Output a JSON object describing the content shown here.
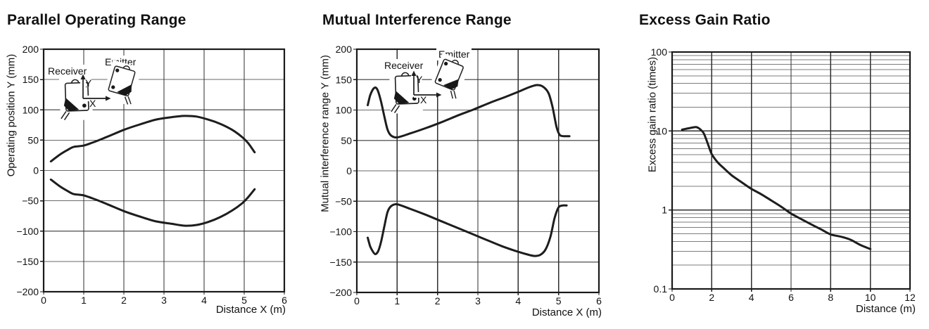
{
  "colors": {
    "background": "#ffffff",
    "text": "#111111",
    "curve": "#1d1d1d",
    "border": "#1a1a1a",
    "grid_horizontal": "#6a6a6a",
    "grid_vertical": "#2e2e2e",
    "grid_log_major": "#2e2e2e",
    "grid_log_minor": "#7d7d7d"
  },
  "chart_data": [
    {
      "id": "parallel",
      "type": "line",
      "title": "Parallel Operating Range",
      "xlabel": "Distance X (m)",
      "ylabel": "Operating position Y (mm)",
      "xscale": "linear",
      "yscale": "linear",
      "xlim": [
        0,
        6
      ],
      "ylim": [
        -200,
        200
      ],
      "xticks": [
        0,
        1,
        2,
        3,
        4,
        5,
        6
      ],
      "yticks": [
        200,
        150,
        100,
        50,
        0,
        -50,
        -100,
        -150,
        -200
      ],
      "grid": true,
      "inset": {
        "receiver": "Receiver",
        "emitter": "Emitter",
        "y_arrow": "Y",
        "x_arrow": "X"
      },
      "series": [
        {
          "name": "upper-boundary",
          "points": [
            [
              0.18,
              15
            ],
            [
              0.4,
              26
            ],
            [
              0.6,
              34
            ],
            [
              0.75,
              39
            ],
            [
              1.0,
              41
            ],
            [
              1.3,
              48
            ],
            [
              1.6,
              56
            ],
            [
              2.0,
              67
            ],
            [
              2.4,
              76
            ],
            [
              2.8,
              84
            ],
            [
              3.2,
              88
            ],
            [
              3.5,
              90
            ],
            [
              3.8,
              89
            ],
            [
              4.1,
              84
            ],
            [
              4.4,
              77
            ],
            [
              4.7,
              67
            ],
            [
              4.95,
              55
            ],
            [
              5.1,
              45
            ],
            [
              5.26,
              30
            ]
          ]
        },
        {
          "name": "lower-boundary",
          "points": [
            [
              0.18,
              -15
            ],
            [
              0.4,
              -26
            ],
            [
              0.6,
              -34
            ],
            [
              0.75,
              -39
            ],
            [
              1.0,
              -41
            ],
            [
              1.3,
              -48
            ],
            [
              1.6,
              -56
            ],
            [
              2.0,
              -67
            ],
            [
              2.4,
              -76
            ],
            [
              2.8,
              -84
            ],
            [
              3.2,
              -88
            ],
            [
              3.5,
              -91
            ],
            [
              3.8,
              -90
            ],
            [
              4.1,
              -85
            ],
            [
              4.4,
              -77
            ],
            [
              4.7,
              -66
            ],
            [
              4.95,
              -54
            ],
            [
              5.1,
              -44
            ],
            [
              5.26,
              -31
            ]
          ]
        }
      ]
    },
    {
      "id": "mutual",
      "type": "line",
      "title": "Mutual Interference Range",
      "xlabel": "Distance X (m)",
      "ylabel": "Mutual interference range Y (mm)",
      "xscale": "linear",
      "yscale": "linear",
      "xlim": [
        0,
        6
      ],
      "ylim": [
        -200,
        200
      ],
      "xticks": [
        0,
        1,
        2,
        3,
        4,
        5,
        6
      ],
      "yticks": [
        200,
        150,
        100,
        50,
        0,
        -50,
        -100,
        -150,
        -200
      ],
      "grid": true,
      "inset": {
        "receiver": "Receiver",
        "emitter": "Emitter",
        "y_arrow": "Y",
        "x_arrow": "X"
      },
      "series": [
        {
          "name": "upper-boundary",
          "points": [
            [
              0.27,
              108
            ],
            [
              0.33,
              124
            ],
            [
              0.4,
              134
            ],
            [
              0.46,
              137
            ],
            [
              0.52,
              132
            ],
            [
              0.6,
              114
            ],
            [
              0.68,
              90
            ],
            [
              0.76,
              68
            ],
            [
              0.85,
              58
            ],
            [
              1.0,
              55
            ],
            [
              1.3,
              61
            ],
            [
              1.7,
              70
            ],
            [
              2.1,
              80
            ],
            [
              2.5,
              91
            ],
            [
              2.9,
              101
            ],
            [
              3.3,
              112
            ],
            [
              3.7,
              122
            ],
            [
              4.0,
              130
            ],
            [
              4.25,
              137
            ],
            [
              4.45,
              141
            ],
            [
              4.6,
              139
            ],
            [
              4.75,
              128
            ],
            [
              4.85,
              105
            ],
            [
              4.95,
              72
            ],
            [
              5.03,
              59
            ],
            [
              5.12,
              57
            ],
            [
              5.27,
              57
            ]
          ]
        },
        {
          "name": "lower-boundary",
          "points": [
            [
              0.27,
              -110
            ],
            [
              0.33,
              -124
            ],
            [
              0.4,
              -133
            ],
            [
              0.46,
              -137
            ],
            [
              0.53,
              -132
            ],
            [
              0.6,
              -117
            ],
            [
              0.68,
              -92
            ],
            [
              0.76,
              -68
            ],
            [
              0.85,
              -58
            ],
            [
              1.0,
              -55
            ],
            [
              1.3,
              -62
            ],
            [
              1.7,
              -72
            ],
            [
              2.1,
              -83
            ],
            [
              2.5,
              -94
            ],
            [
              2.9,
              -105
            ],
            [
              3.3,
              -116
            ],
            [
              3.6,
              -124
            ],
            [
              3.9,
              -131
            ],
            [
              4.2,
              -137
            ],
            [
              4.4,
              -140
            ],
            [
              4.55,
              -138
            ],
            [
              4.68,
              -129
            ],
            [
              4.8,
              -108
            ],
            [
              4.9,
              -78
            ],
            [
              5.0,
              -60
            ],
            [
              5.1,
              -57
            ],
            [
              5.2,
              -57
            ]
          ]
        }
      ]
    },
    {
      "id": "excess",
      "type": "line",
      "title": "Excess Gain Ratio",
      "xlabel": "Distance (m)",
      "ylabel": "Excess gain ratio (times)",
      "xscale": "linear",
      "yscale": "log",
      "xlim": [
        0,
        12
      ],
      "ylim": [
        0.1,
        100
      ],
      "xticks": [
        0,
        2,
        4,
        6,
        8,
        10,
        12
      ],
      "yticks": [
        100,
        10,
        1,
        0.1
      ],
      "grid": true,
      "series": [
        {
          "name": "excess-gain",
          "points": [
            [
              0.5,
              10.4
            ],
            [
              0.9,
              10.9
            ],
            [
              1.2,
              11.2
            ],
            [
              1.4,
              10.6
            ],
            [
              1.6,
              9.3
            ],
            [
              1.8,
              6.9
            ],
            [
              2.0,
              5.1
            ],
            [
              2.3,
              4.0
            ],
            [
              2.6,
              3.4
            ],
            [
              3.0,
              2.75
            ],
            [
              3.5,
              2.25
            ],
            [
              4.0,
              1.85
            ],
            [
              4.5,
              1.58
            ],
            [
              5.0,
              1.32
            ],
            [
              5.5,
              1.1
            ],
            [
              6.0,
              0.9
            ],
            [
              6.5,
              0.77
            ],
            [
              7.0,
              0.66
            ],
            [
              7.5,
              0.57
            ],
            [
              8.0,
              0.49
            ],
            [
              8.5,
              0.46
            ],
            [
              9.0,
              0.42
            ],
            [
              9.5,
              0.36
            ],
            [
              10.0,
              0.32
            ]
          ]
        }
      ]
    }
  ]
}
